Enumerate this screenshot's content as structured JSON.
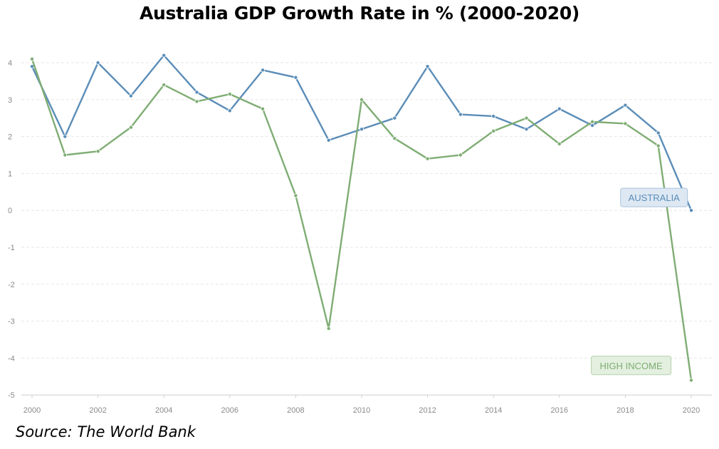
{
  "title": "Australia GDP Growth Rate in % (2000-2020)",
  "source": "Source: The World Bank",
  "colors": {
    "australia": "#5b8db8",
    "high_income": "#7fad74",
    "grid": "#e6e6e6",
    "tick_text": "#8a8a8a"
  },
  "chart_data": {
    "type": "line",
    "title": "Australia GDP Growth Rate in % (2000-2020)",
    "xlabel": "",
    "ylabel": "",
    "x": [
      2000,
      2001,
      2002,
      2003,
      2004,
      2005,
      2006,
      2007,
      2008,
      2009,
      2010,
      2011,
      2012,
      2013,
      2014,
      2015,
      2016,
      2017,
      2018,
      2019,
      2020
    ],
    "x_ticks": [
      "2000",
      "2002",
      "2004",
      "2006",
      "2008",
      "2010",
      "2012",
      "2014",
      "2016",
      "2018",
      "2020"
    ],
    "y_ticks": [
      "4",
      "3",
      "2",
      "1",
      "0",
      "-1",
      "-2",
      "-3",
      "-4",
      "-5"
    ],
    "xlim": [
      2000,
      2020
    ],
    "ylim": [
      -5,
      4.5
    ],
    "grid": true,
    "series": [
      {
        "name": "AUSTRALIA",
        "color": "#5b8db8",
        "values": [
          3.9,
          2.0,
          4.0,
          3.1,
          4.2,
          3.2,
          2.7,
          3.8,
          3.6,
          1.9,
          2.2,
          2.5,
          3.9,
          2.6,
          2.55,
          2.2,
          2.75,
          2.3,
          2.85,
          2.1,
          0.0
        ]
      },
      {
        "name": "HIGH INCOME",
        "color": "#7fad74",
        "values": [
          4.1,
          1.5,
          1.6,
          2.25,
          3.4,
          2.95,
          3.15,
          2.75,
          0.4,
          -3.2,
          3.0,
          1.95,
          1.4,
          1.5,
          2.15,
          2.5,
          1.8,
          2.4,
          2.35,
          1.75,
          -4.6
        ]
      }
    ],
    "series_labels": [
      {
        "text": "AUSTRALIA",
        "x": 2019.8,
        "y": 0.35
      },
      {
        "text": "HIGH INCOME",
        "x": 2019.3,
        "y": -4.2
      }
    ]
  }
}
